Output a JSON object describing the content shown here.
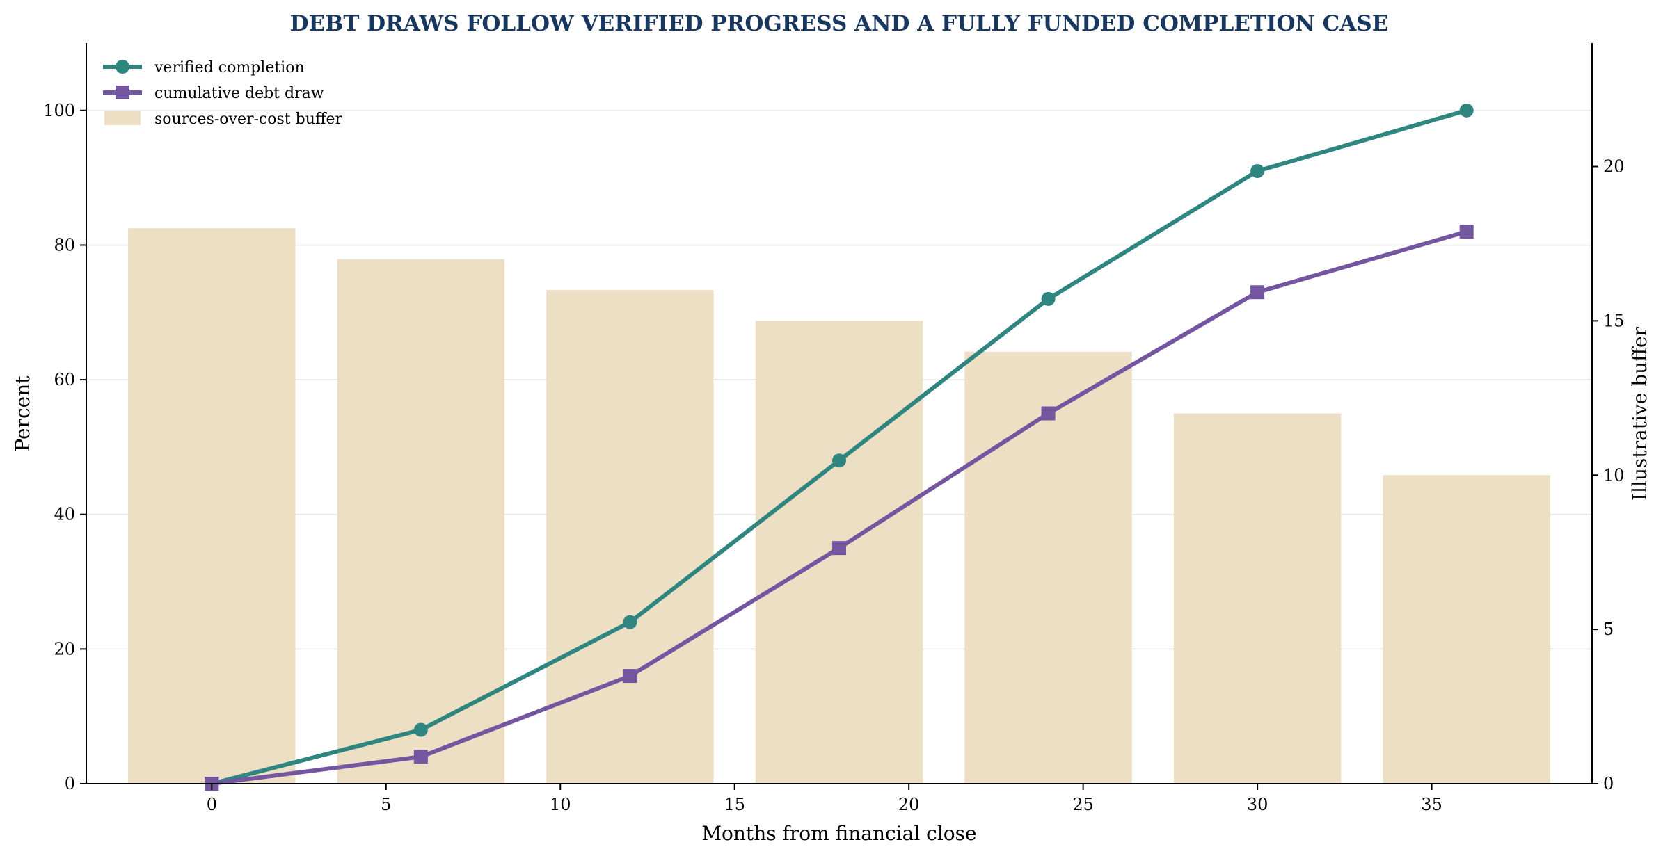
{
  "chart_data": {
    "type": "line",
    "title": "DEBT DRAWS FOLLOW VERIFIED PROGRESS AND A FULLY FUNDED COMPLETION CASE",
    "xlabel": "Months from financial close",
    "ylabel": "Percent",
    "y2label": "Illustrative buffer",
    "xlim": [
      -3.6,
      39.6
    ],
    "ylim": [
      0,
      110
    ],
    "y2lim": [
      0,
      24
    ],
    "xticks": [
      0,
      5,
      10,
      15,
      20,
      25,
      30,
      35
    ],
    "yticks": [
      0,
      20,
      40,
      60,
      80,
      100
    ],
    "y2ticks": [
      0,
      5,
      10,
      15,
      20
    ],
    "grid": "horizontal",
    "legend_position": "top-left",
    "x": [
      0,
      6,
      12,
      18,
      24,
      30,
      36
    ],
    "series": [
      {
        "name": "verified completion",
        "axis": "left",
        "kind": "line",
        "marker": "circle",
        "color": "#2f8580",
        "values": [
          0,
          8,
          24,
          48,
          72,
          91,
          100
        ]
      },
      {
        "name": "cumulative debt draw",
        "axis": "left",
        "kind": "line",
        "marker": "square",
        "color": "#7355a0",
        "values": [
          0,
          4,
          16,
          35,
          55,
          73,
          82
        ]
      },
      {
        "name": "sources-over-cost buffer",
        "axis": "right",
        "kind": "bar",
        "color": "#ecdfc4",
        "values": [
          18,
          17,
          16,
          15,
          14,
          12,
          10
        ]
      }
    ]
  }
}
